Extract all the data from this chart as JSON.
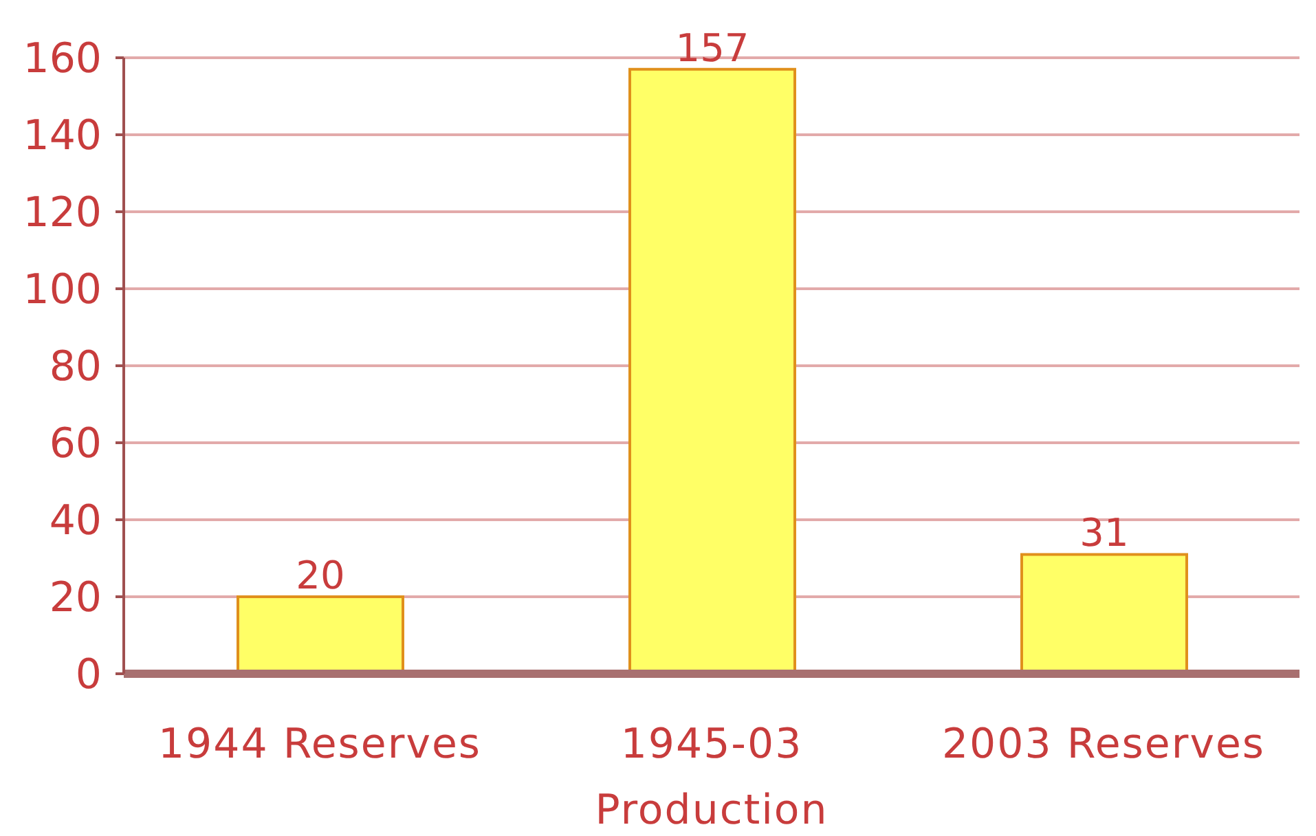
{
  "chart_data": {
    "type": "bar",
    "categories": [
      "1944 Reserves",
      "1945-03 Production",
      "2003 Reserves"
    ],
    "values": [
      20,
      157,
      31
    ],
    "color": "#ffff66",
    "ylim": [
      0,
      160
    ],
    "yticks": [
      0,
      20,
      40,
      60,
      80,
      100,
      120,
      140,
      160
    ],
    "grid": "y",
    "data_labels": true
  }
}
